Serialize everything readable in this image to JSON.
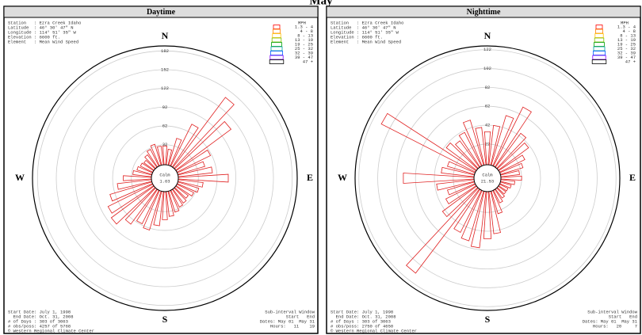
{
  "title": "May",
  "chart_data": [
    {
      "type": "windrose",
      "title": "Daytime",
      "station_info": [
        "Station   : Ezra Creek Idaho",
        "Latitude  : 46° 30' 47\" N",
        "Longitude : 114° 51' 35\" W",
        "Elevation : 6600 ft.",
        "Element   : Mean Wind Speed"
      ],
      "legend_title": "MPH",
      "legend": [
        {
          "label": "1.3 - 4",
          "color": "#ff0000"
        },
        {
          "label": "4 - 8",
          "color": "#ff8000"
        },
        {
          "label": "8 - 13",
          "color": "#ffc000"
        },
        {
          "label": "13 - 19",
          "color": "#80c000"
        },
        {
          "label": "19 - 25",
          "color": "#00a000"
        },
        {
          "label": "25 - 32",
          "color": "#00a0a0"
        },
        {
          "label": "32 - 39",
          "color": "#0060ff"
        },
        {
          "label": "39 - 47",
          "color": "#8000ff"
        },
        {
          "label": "47 +",
          "color": "#000000"
        }
      ],
      "compass": [
        "N",
        "E",
        "S",
        "W"
      ],
      "rlim": [
        0,
        190
      ],
      "rticks": [
        32,
        62,
        92,
        122,
        152,
        182
      ],
      "calm_label": "Calm",
      "calm_value": 1.63,
      "color": "#e02020",
      "values": [
        30,
        25,
        45,
        75,
        140,
        110,
        60,
        45,
        55,
        80,
        40,
        35,
        30,
        25,
        28,
        30,
        35,
        40,
        45,
        55,
        65,
        60,
        70,
        85,
        80,
        70,
        55,
        45,
        30,
        25,
        22,
        20,
        25,
        30,
        35,
        30
      ],
      "footer_left": [
        "Start Date: July 1, 1998",
        "  End Date: Oct. 31, 2008",
        "# of Days : 303 of 3063",
        "# obs/poss: 4257 of 5768",
        "© Western Regional Climate Center"
      ],
      "footer_right": [
        "Sub-interval Window",
        "Start   End",
        "Dates: May 01  May 31",
        "Hours:   11    19"
      ]
    },
    {
      "type": "windrose",
      "title": "Nighttime",
      "station_info": [
        "Station   : Ezra Creek Idaho",
        "Latitude  : 46° 30' 47\" N",
        "Longitude : 114° 51' 35\" W",
        "Elevation : 6600 ft.",
        "Element   : Mean Wind Speed"
      ],
      "legend_title": "MPH",
      "legend": [
        {
          "label": "1.3 - 4",
          "color": "#ff0000"
        },
        {
          "label": "4 - 8",
          "color": "#ff8000"
        },
        {
          "label": "8 - 13",
          "color": "#ffc000"
        },
        {
          "label": "13 - 19",
          "color": "#80c000"
        },
        {
          "label": "19 - 25",
          "color": "#00a000"
        },
        {
          "label": "25 - 32",
          "color": "#00a0a0"
        },
        {
          "label": "32 - 39",
          "color": "#0060ff"
        },
        {
          "label": "39 - 47",
          "color": "#8000ff"
        },
        {
          "label": "47 +",
          "color": "#000000"
        }
      ],
      "compass": [
        "N",
        "E",
        "S",
        "W"
      ],
      "rlim": [
        0,
        126
      ],
      "rticks": [
        22,
        42,
        62,
        82,
        102,
        122
      ],
      "calm_label": "Calm",
      "calm_value": 21.53,
      "color": "#e02020",
      "values": [
        35,
        42,
        55,
        70,
        45,
        40,
        30,
        25,
        20,
        22,
        15,
        12,
        10,
        10,
        12,
        15,
        25,
        45,
        50,
        60,
        55,
        50,
        112,
        45,
        35,
        30,
        40,
        75,
        35,
        30,
        112,
        40,
        35,
        40,
        50,
        40
      ],
      "footer_left": [
        "Start Date: July 1, 1998",
        "  End Date: Oct. 31, 2008",
        "# of Days : 303 of 3063",
        "# obs/poss: 2750 of 4650",
        "© Western Regional Climate Center"
      ],
      "footer_right": [
        "Sub-interval Window",
        "Start   End",
        "Dates: May 01  May 31",
        "Hours:   20     7"
      ]
    }
  ]
}
